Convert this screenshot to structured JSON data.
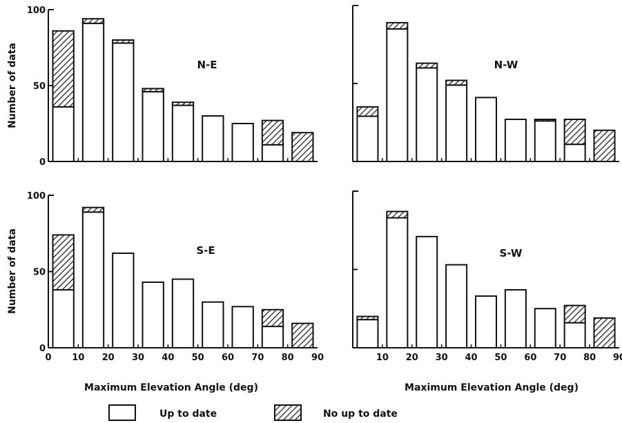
{
  "figure": {
    "xlabel": "Maximum Elevation Angle (deg)",
    "ylabel": "Number of data"
  },
  "legend": {
    "items": [
      {
        "label": "Up to date",
        "pattern": "blank"
      },
      {
        "label": "No up to date",
        "pattern": "hatched"
      }
    ]
  },
  "chart_data": [
    {
      "type": "bar",
      "stacked": true,
      "title": "N-E",
      "xlabel": "Maximum Elevation Angle (deg)",
      "ylabel": "Number of data",
      "categories": [
        "0-10",
        "10-20",
        "20-30",
        "30-40",
        "40-50",
        "50-60",
        "60-70",
        "70-80",
        "80-90"
      ],
      "series": [
        {
          "name": "Up to date",
          "values": [
            36,
            91,
            78,
            46,
            37,
            30,
            25,
            11,
            0
          ]
        },
        {
          "name": "No up to date",
          "values": [
            50,
            3,
            2,
            2,
            2,
            0,
            0,
            16,
            19
          ]
        }
      ],
      "ylim": [
        0,
        100
      ],
      "xlim": [
        0,
        90
      ],
      "yticks": [
        0,
        50,
        100
      ],
      "xticks": [],
      "show_ylabels": true,
      "show_xlabels": false
    },
    {
      "type": "bar",
      "stacked": true,
      "title": "N-W",
      "xlabel": "Maximum Elevation Angle (deg)",
      "ylabel": "",
      "categories": [
        "0-10",
        "10-20",
        "20-30",
        "30-40",
        "40-50",
        "50-60",
        "60-70",
        "70-80",
        "80-90"
      ],
      "series": [
        {
          "name": "Up to date",
          "values": [
            29,
            85,
            60,
            49,
            41,
            27,
            26,
            11,
            0
          ]
        },
        {
          "name": "No up to date",
          "values": [
            6,
            4,
            3,
            3,
            0,
            0,
            1,
            16,
            20
          ]
        }
      ],
      "ylim": [
        0,
        100
      ],
      "xlim": [
        0,
        90
      ],
      "yticks": [
        0,
        50,
        100
      ],
      "xticks": [],
      "show_ylabels": false,
      "show_xlabels": false
    },
    {
      "type": "bar",
      "stacked": true,
      "title": "S-E",
      "xlabel": "Maximum Elevation Angle (deg)",
      "ylabel": "Number of data",
      "categories": [
        "0-10",
        "10-20",
        "20-30",
        "30-40",
        "40-50",
        "50-60",
        "60-70",
        "70-80",
        "80-90"
      ],
      "series": [
        {
          "name": "Up to date",
          "values": [
            38,
            89,
            62,
            43,
            45,
            30,
            27,
            14,
            0
          ]
        },
        {
          "name": "No up to date",
          "values": [
            36,
            3,
            0,
            0,
            0,
            0,
            0,
            11,
            16
          ]
        }
      ],
      "ylim": [
        0,
        100
      ],
      "xlim": [
        0,
        90
      ],
      "yticks": [
        0,
        50,
        100
      ],
      "xticks": [
        0,
        10,
        20,
        30,
        40,
        50,
        60,
        70,
        80,
        90
      ],
      "show_ylabels": true,
      "show_xlabels": true
    },
    {
      "type": "bar",
      "stacked": true,
      "title": "S-W",
      "xlabel": "Maximum Elevation Angle (deg)",
      "ylabel": "",
      "categories": [
        "0-10",
        "10-20",
        "20-30",
        "30-40",
        "40-50",
        "50-60",
        "60-70",
        "70-80",
        "80-90"
      ],
      "series": [
        {
          "name": "Up to date",
          "values": [
            18,
            83,
            71,
            53,
            33,
            37,
            25,
            16,
            0
          ]
        },
        {
          "name": "No up to date",
          "values": [
            2,
            4,
            0,
            0,
            0,
            0,
            0,
            11,
            19
          ]
        }
      ],
      "ylim": [
        0,
        100
      ],
      "xlim": [
        0,
        90
      ],
      "yticks": [
        0,
        50,
        100
      ],
      "xticks": [
        10,
        20,
        30,
        40,
        50,
        60,
        70,
        80,
        90
      ],
      "show_ylabels": false,
      "show_xlabels": true
    }
  ]
}
